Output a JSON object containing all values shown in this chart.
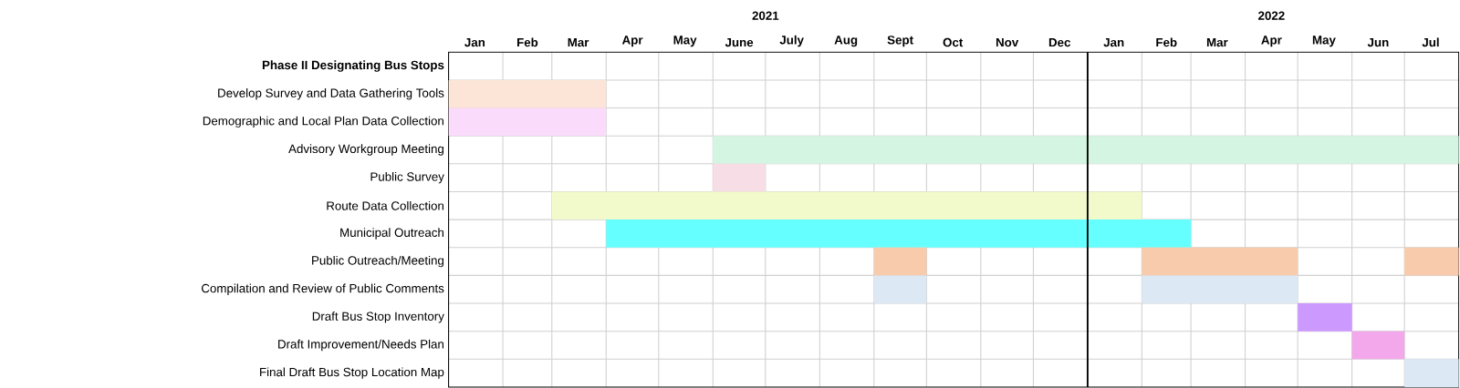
{
  "chart_data": {
    "type": "bar",
    "orientation": "horizontal",
    "grid": true,
    "categories": [
      "**Phase II Designating Bus Stops**",
      "Develop Survey and Data Gathering Tools",
      "Demographic and Local Plan Data Collection",
      "Advisory Workgroup Meeting",
      "Public Survey",
      "Route Data Collection",
      "Municipal Outreach",
      "Public Outreach/Meeting",
      "Compilation and Review of Public Comments",
      "Draft Bus Stop Inventory",
      "Draft Improvement/Needs Plan",
      "Final Draft Bus Stop Location Map"
    ],
    "series": [
      {
        "values": [
          null,
          90,
          90,
          426,
          30,
          337,
          334,
          30,
          30,
          31,
          30,
          31
        ],
        "base": [
          null,
          18628,
          18628,
          18779,
          18779,
          18687,
          18718,
          18871,
          18871,
          19113,
          19144,
          19174
        ],
        "colors": [
          null,
          "#fce4d6",
          "#fbdbfb",
          "#d5f5e3",
          "#f7dde5",
          "#f2facb",
          "#66ffff",
          "#f8cbad",
          "#dde8f5",
          "#cc99ff",
          "#f4a8ec",
          "#dde8f5"
        ]
      },
      {
        "values": [
          null,
          null,
          null,
          null,
          null,
          null,
          null,
          89,
          89,
          null,
          null,
          null
        ],
        "base": [
          null,
          null,
          null,
          null,
          null,
          null,
          null,
          19024,
          19024,
          null,
          null,
          null
        ],
        "colors": [
          null,
          null,
          null,
          null,
          null,
          null,
          null,
          "#f8cbad",
          "#dde8f5",
          null,
          null,
          null
        ]
      },
      {
        "values": [
          null,
          null,
          null,
          null,
          null,
          null,
          null,
          31,
          null,
          null,
          null,
          null
        ],
        "base": [
          null,
          null,
          null,
          null,
          null,
          null,
          null,
          19174,
          null,
          null,
          null,
          null
        ],
        "colors": [
          null,
          null,
          null,
          null,
          null,
          null,
          null,
          "#f8cbad",
          null,
          null,
          null,
          null
        ]
      }
    ],
    "xlim": [
      "2021-01-01",
      "2022-08-01"
    ],
    "xticks": [
      {
        "value": "2021-01-16",
        "label": "Jan"
      },
      {
        "value": "2021-02-15",
        "label": "Feb"
      },
      {
        "value": "2021-03-16",
        "label": "Mar"
      },
      {
        "value": "2021-04-16",
        "label": "Apr"
      },
      {
        "value": "2021-05-16",
        "label": "May"
      },
      {
        "value": "2021-06-16",
        "label": "June"
      },
      {
        "value": "2021-07-16",
        "label": "July"
      },
      {
        "value": "2021-08-16",
        "label": "Aug"
      },
      {
        "value": "2021-09-16",
        "label": "Sept"
      },
      {
        "value": "2021-10-16",
        "label": "Oct"
      },
      {
        "value": "2021-11-16",
        "label": "Nov"
      },
      {
        "value": "2021-12-16",
        "label": "Dec"
      },
      {
        "value": "2022-01-16",
        "label": "Jan"
      },
      {
        "value": "2022-02-15",
        "label": "Feb"
      },
      {
        "value": "2022-03-16",
        "label": "Mar"
      },
      {
        "value": "2022-04-16",
        "label": "Apr"
      },
      {
        "value": "2022-05-16",
        "label": "May"
      },
      {
        "value": "2022-06-16",
        "label": "Jun"
      },
      {
        "value": "2022-07-16",
        "label": "Jul"
      }
    ],
    "x2lim": [
      "2021-01-01",
      "2022-08-01"
    ],
    "x2ticks": [
      {
        "value": "2021-07-01",
        "label": "2021"
      },
      {
        "value": "2022-04-16",
        "label": "2022"
      }
    ],
    "ref_lines": [
      {
        "axis": "x",
        "value": "2022-01-01",
        "color": "#000000"
      }
    ]
  }
}
